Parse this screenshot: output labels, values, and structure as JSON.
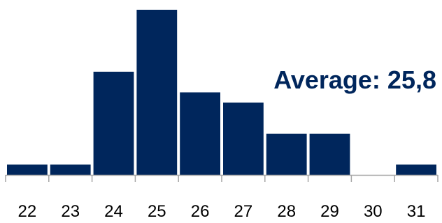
{
  "chart_data": {
    "type": "bar",
    "categories": [
      "22",
      "23",
      "24",
      "25",
      "26",
      "27",
      "28",
      "29",
      "30",
      "31"
    ],
    "values": [
      1,
      1,
      10,
      16,
      8,
      7,
      4,
      4,
      0,
      1
    ],
    "ylim": [
      0,
      16
    ],
    "grid": false,
    "bar_color": "#00265C",
    "axis_color": "#A6A6A6",
    "annotation": "Average: 25,8",
    "annotation_color": "#00265C"
  }
}
